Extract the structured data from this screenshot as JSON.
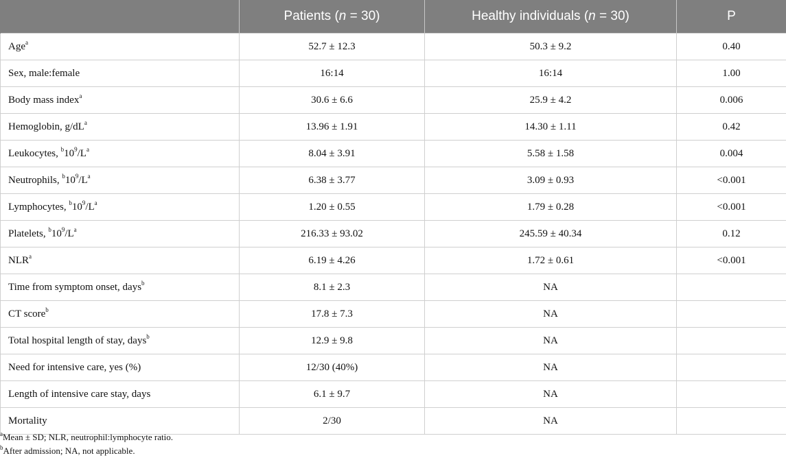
{
  "header": {
    "patients_prefix": "Patients (",
    "patients_n": "n",
    "patients_suffix": " = 30)",
    "healthy_prefix": "Healthy individuals (",
    "healthy_n": "n",
    "healthy_suffix": " = 30)",
    "p": "P"
  },
  "rows": [
    {
      "label": "Age",
      "label_sup": "a",
      "patients": "52.7 ± 12.3",
      "healthy": "50.3 ± 9.2",
      "p": "0.40"
    },
    {
      "label": "Sex, male:female",
      "patients": "16:14",
      "healthy": "16:14",
      "p": "1.00"
    },
    {
      "label": "Body mass index",
      "label_sup": "a",
      "patients": "30.6 ± 6.6",
      "healthy": "25.9 ± 4.2",
      "p": "0.006"
    },
    {
      "label": "Hemoglobin, g/dL",
      "label_sup": "a",
      "patients": "13.96 ± 1.91",
      "healthy": "14.30 ± 1.11",
      "p": "0.42"
    },
    {
      "label_pre": "Leukocytes, ",
      "label_pre_sup": "b",
      "label_mid": "10",
      "label_mid_sup": "9",
      "label_post": "/L",
      "label_sup": "a",
      "patients": "8.04 ± 3.91",
      "healthy": "5.58 ± 1.58",
      "p": "0.004"
    },
    {
      "label_pre": "Neutrophils, ",
      "label_pre_sup": "b",
      "label_mid": "10",
      "label_mid_sup": "9",
      "label_post": "/L",
      "label_sup": "a",
      "patients": "6.38 ± 3.77",
      "healthy": "3.09 ± 0.93",
      "p": "<0.001"
    },
    {
      "label_pre": "Lymphocytes, ",
      "label_pre_sup": "b",
      "label_mid": "10",
      "label_mid_sup": "9",
      "label_post": "/L",
      "label_sup": "a",
      "patients": "1.20 ± 0.55",
      "healthy": "1.79 ± 0.28",
      "p": "<0.001"
    },
    {
      "label_pre": "Platelets, ",
      "label_pre_sup": "b",
      "label_mid": "10",
      "label_mid_sup": "9",
      "label_post": "/L",
      "label_sup": "a",
      "patients": "216.33 ± 93.02",
      "healthy": "245.59 ± 40.34",
      "p": "0.12"
    },
    {
      "label": "NLR",
      "label_sup": "a",
      "patients": "6.19 ± 4.26",
      "healthy": "1.72 ± 0.61",
      "p": "<0.001"
    },
    {
      "label": "Time from symptom onset, days",
      "label_sup": "b",
      "patients": "8.1 ± 2.3",
      "healthy": "NA",
      "p": ""
    },
    {
      "label": "CT score",
      "label_sup": "b",
      "patients": "17.8 ± 7.3",
      "healthy": "NA",
      "p": ""
    },
    {
      "label": "Total hospital length of stay, days",
      "label_sup": "b",
      "patients": "12.9 ± 9.8",
      "healthy": "NA",
      "p": ""
    },
    {
      "label": "Need for intensive care, yes (%)",
      "patients": "12/30 (40%)",
      "healthy": "NA",
      "p": ""
    },
    {
      "label": "Length of intensive care stay, days",
      "patients": "6.1 ± 9.7",
      "healthy": "NA",
      "p": ""
    },
    {
      "label": "Mortality",
      "patients": "2/30",
      "healthy": "NA",
      "p": ""
    }
  ],
  "footnotes": [
    {
      "mark": "a",
      "text": "Mean ± SD; NLR, neutrophil:lymphocyte ratio."
    },
    {
      "mark": "b",
      "text": "After admission; NA, not applicable."
    }
  ]
}
